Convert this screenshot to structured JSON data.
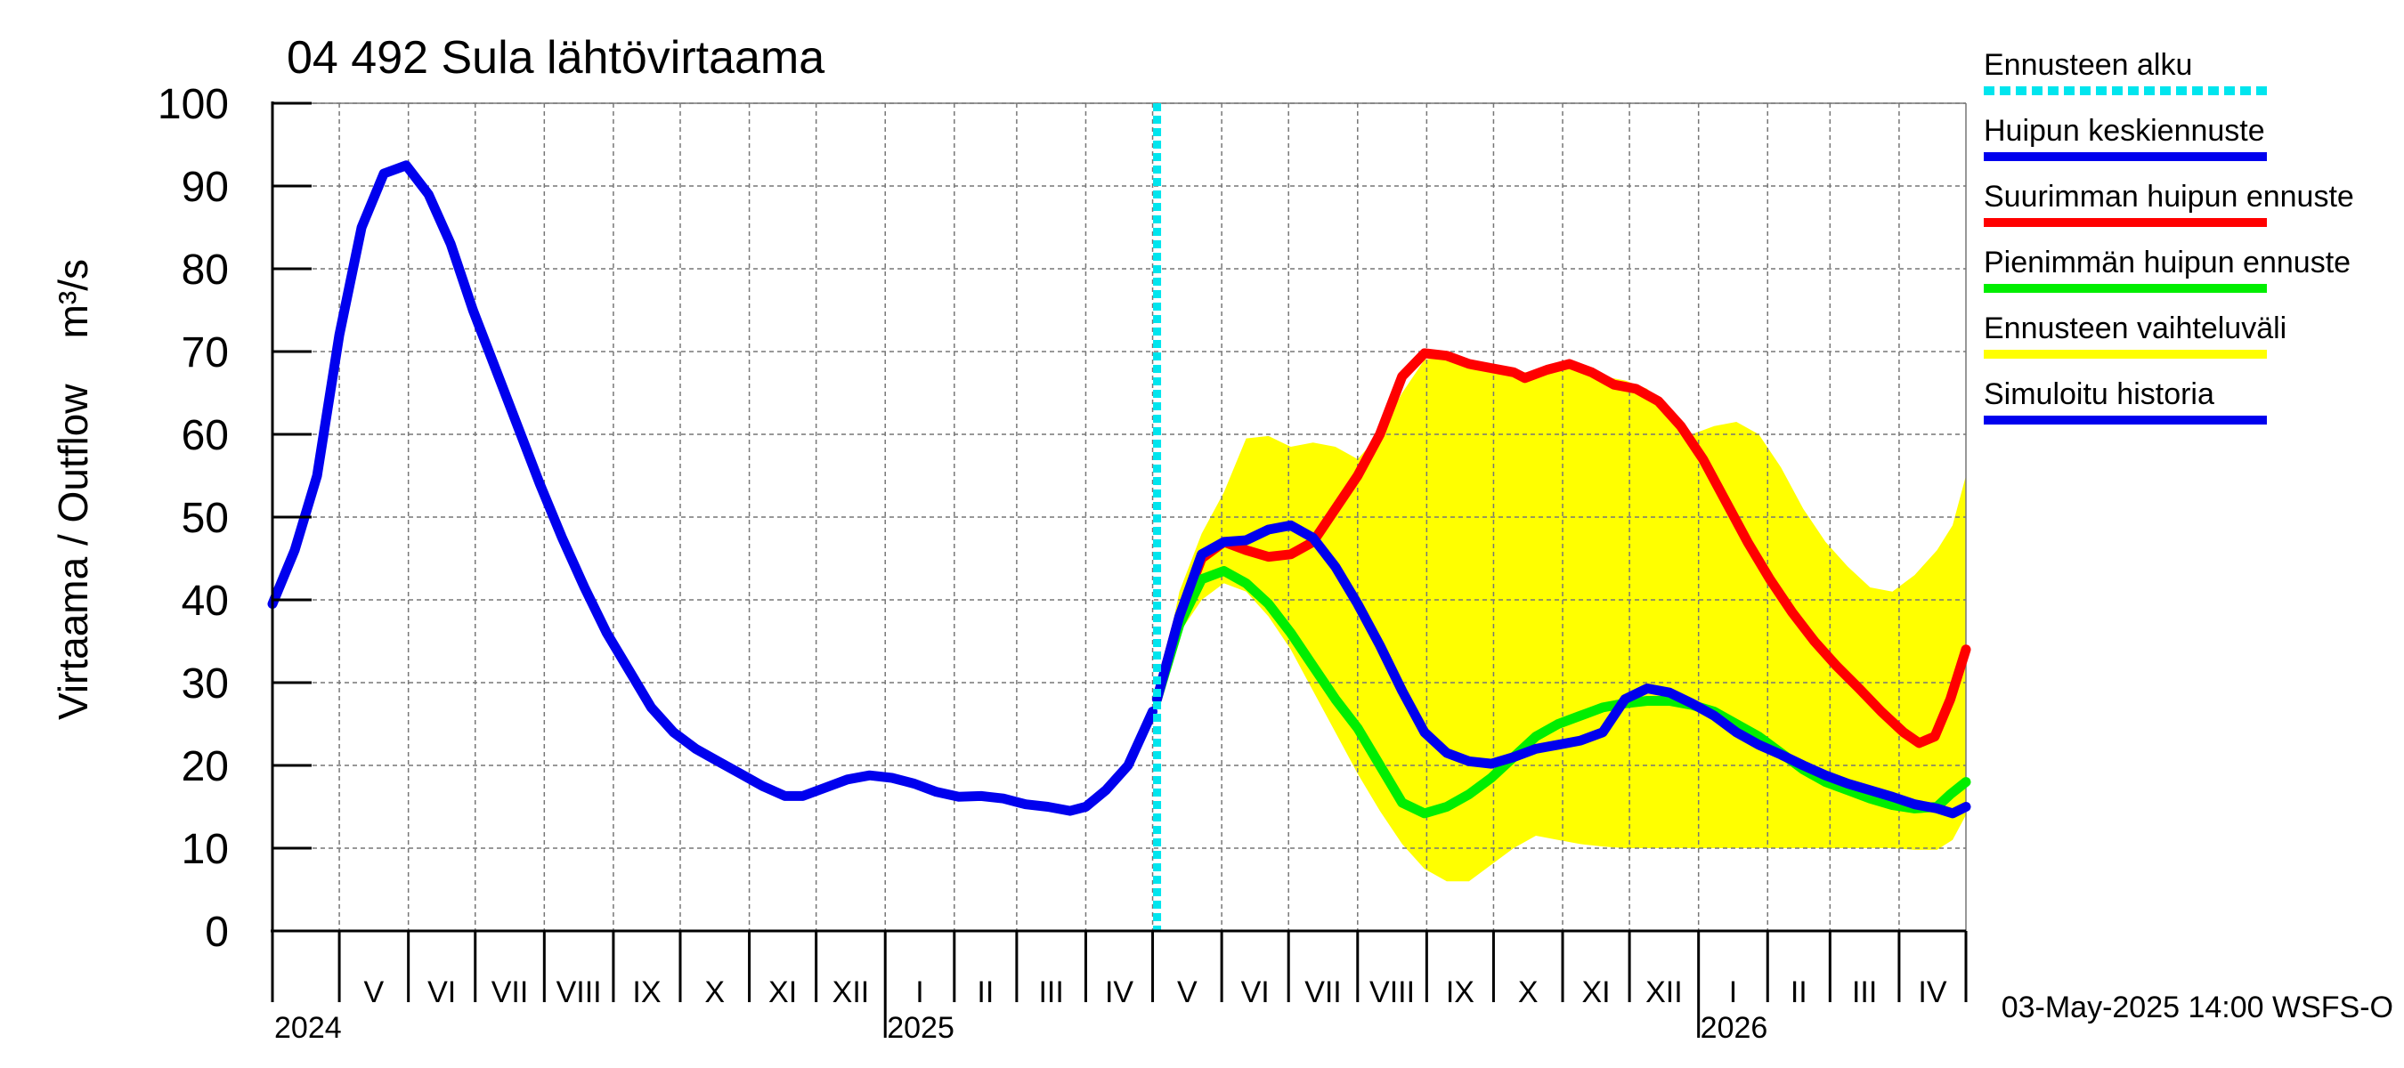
{
  "chart_data": {
    "type": "line",
    "title": "04 492 Sula lähtövirtaama",
    "ylabel": "Virtaama / Outflow    m³/s",
    "ylim": [
      0,
      100
    ],
    "yticks": [
      0,
      10,
      20,
      30,
      40,
      50,
      60,
      70,
      80,
      90,
      100
    ],
    "xlim": [
      "2024-04-01",
      "2026-05-01"
    ],
    "month_labels": [
      "V",
      "VI",
      "VII",
      "VIII",
      "IX",
      "X",
      "XI",
      "XII",
      "I",
      "II",
      "III",
      "IV",
      "V",
      "VI",
      "VII",
      "VIII",
      "IX",
      "X",
      "XI",
      "XII",
      "I",
      "II",
      "III",
      "IV"
    ],
    "month_label_dates": [
      "2024-05-01",
      "2024-06-01",
      "2024-07-01",
      "2024-08-01",
      "2024-09-01",
      "2024-10-01",
      "2024-11-01",
      "2024-12-01",
      "2025-01-01",
      "2025-02-01",
      "2025-03-01",
      "2025-04-01",
      "2025-05-01",
      "2025-06-01",
      "2025-07-01",
      "2025-08-01",
      "2025-09-01",
      "2025-10-01",
      "2025-11-01",
      "2025-12-01",
      "2026-01-01",
      "2026-02-01",
      "2026-03-01",
      "2026-04-01"
    ],
    "year_labels": [
      {
        "label": "2024",
        "date": "2024-04-01"
      },
      {
        "label": "2025",
        "date": "2025-01-01"
      },
      {
        "label": "2026",
        "date": "2026-01-01"
      }
    ],
    "forecast_start": "2025-05-03",
    "grid": true,
    "legend_position": "right",
    "footer": "03-May-2025 14:00 WSFS-O",
    "series": [
      {
        "name": "Simuloitu historia",
        "color": "#0000ee",
        "points": [
          [
            "2024-04-01",
            39.5
          ],
          [
            "2024-04-11",
            46
          ],
          [
            "2024-04-21",
            55
          ],
          [
            "2024-05-01",
            72
          ],
          [
            "2024-05-11",
            85
          ],
          [
            "2024-05-21",
            91.5
          ],
          [
            "2024-05-31",
            92.5
          ],
          [
            "2024-06-10",
            89
          ],
          [
            "2024-06-20",
            83
          ],
          [
            "2024-06-30",
            75
          ],
          [
            "2024-07-10",
            68
          ],
          [
            "2024-07-20",
            61
          ],
          [
            "2024-07-30",
            54
          ],
          [
            "2024-08-09",
            47.5
          ],
          [
            "2024-08-19",
            41.5
          ],
          [
            "2024-08-29",
            36
          ],
          [
            "2024-09-08",
            31.5
          ],
          [
            "2024-09-18",
            27
          ],
          [
            "2024-09-28",
            24
          ],
          [
            "2024-10-08",
            22
          ],
          [
            "2024-10-18",
            20.5
          ],
          [
            "2024-10-28",
            19
          ],
          [
            "2024-11-07",
            17.5
          ],
          [
            "2024-11-17",
            16.3
          ],
          [
            "2024-11-25",
            16.3
          ],
          [
            "2024-12-05",
            17.3
          ],
          [
            "2024-12-15",
            18.3
          ],
          [
            "2024-12-25",
            18.8
          ],
          [
            "2025-01-04",
            18.5
          ],
          [
            "2025-01-14",
            17.8
          ],
          [
            "2025-01-24",
            16.8
          ],
          [
            "2025-02-03",
            16.2
          ],
          [
            "2025-02-13",
            16.3
          ],
          [
            "2025-02-23",
            16
          ],
          [
            "2025-03-05",
            15.3
          ],
          [
            "2025-03-15",
            15
          ],
          [
            "2025-03-25",
            14.5
          ],
          [
            "2025-04-01",
            15
          ],
          [
            "2025-04-10",
            17
          ],
          [
            "2025-04-20",
            20
          ],
          [
            "2025-05-01",
            26.5
          ]
        ]
      },
      {
        "name": "Suurimman huipun ennuste",
        "color": "#ff0000",
        "points": [
          [
            "2025-05-03",
            28
          ],
          [
            "2025-05-13",
            38
          ],
          [
            "2025-05-23",
            45
          ],
          [
            "2025-06-02",
            47
          ],
          [
            "2025-06-12",
            46
          ],
          [
            "2025-06-22",
            45.2
          ],
          [
            "2025-07-02",
            45.5
          ],
          [
            "2025-07-12",
            47
          ],
          [
            "2025-07-22",
            51
          ],
          [
            "2025-08-01",
            55
          ],
          [
            "2025-08-11",
            60
          ],
          [
            "2025-08-21",
            67
          ],
          [
            "2025-08-31",
            69.8
          ],
          [
            "2025-09-10",
            69.5
          ],
          [
            "2025-09-20",
            68.5
          ],
          [
            "2025-09-30",
            68
          ],
          [
            "2025-10-10",
            67.5
          ],
          [
            "2025-10-15",
            66.8
          ],
          [
            "2025-10-25",
            67.8
          ],
          [
            "2025-11-04",
            68.5
          ],
          [
            "2025-11-14",
            67.5
          ],
          [
            "2025-11-24",
            66
          ],
          [
            "2025-12-04",
            65.5
          ],
          [
            "2025-12-14",
            64
          ],
          [
            "2025-12-24",
            61
          ],
          [
            "2026-01-03",
            57
          ],
          [
            "2026-01-13",
            52
          ],
          [
            "2026-01-23",
            47
          ],
          [
            "2026-02-02",
            42.5
          ],
          [
            "2026-02-12",
            38.5
          ],
          [
            "2026-02-22",
            35
          ],
          [
            "2026-03-04",
            32
          ],
          [
            "2026-03-14",
            29.3
          ],
          [
            "2026-03-24",
            26.5
          ],
          [
            "2026-04-03",
            24
          ],
          [
            "2026-04-10",
            22.7
          ],
          [
            "2026-04-17",
            23.5
          ],
          [
            "2026-04-24",
            28
          ],
          [
            "2026-05-01",
            34
          ]
        ]
      },
      {
        "name": "Pienimmän huipun ennuste",
        "color": "#00ee00",
        "points": [
          [
            "2025-05-03",
            28
          ],
          [
            "2025-05-13",
            37
          ],
          [
            "2025-05-23",
            42.5
          ],
          [
            "2025-06-02",
            43.5
          ],
          [
            "2025-06-12",
            42
          ],
          [
            "2025-06-22",
            39.5
          ],
          [
            "2025-07-02",
            36
          ],
          [
            "2025-07-12",
            32
          ],
          [
            "2025-07-22",
            28
          ],
          [
            "2025-08-01",
            24.5
          ],
          [
            "2025-08-11",
            20
          ],
          [
            "2025-08-21",
            15.5
          ],
          [
            "2025-08-31",
            14.2
          ],
          [
            "2025-09-10",
            15
          ],
          [
            "2025-09-20",
            16.5
          ],
          [
            "2025-09-30",
            18.5
          ],
          [
            "2025-10-10",
            21
          ],
          [
            "2025-10-20",
            23.5
          ],
          [
            "2025-10-30",
            25
          ],
          [
            "2025-11-09",
            26
          ],
          [
            "2025-11-19",
            27
          ],
          [
            "2025-11-29",
            27.5
          ],
          [
            "2025-12-09",
            27.8
          ],
          [
            "2025-12-19",
            27.8
          ],
          [
            "2025-12-29",
            27.3
          ],
          [
            "2026-01-08",
            26.5
          ],
          [
            "2026-01-18",
            25
          ],
          [
            "2026-01-28",
            23.5
          ],
          [
            "2026-02-07",
            21.5
          ],
          [
            "2026-02-17",
            19.5
          ],
          [
            "2026-02-27",
            18
          ],
          [
            "2026-03-09",
            17
          ],
          [
            "2026-03-19",
            16
          ],
          [
            "2026-03-29",
            15.2
          ],
          [
            "2026-04-08",
            14.8
          ],
          [
            "2026-04-18",
            15
          ],
          [
            "2026-04-24",
            16.5
          ],
          [
            "2026-05-01",
            18
          ]
        ]
      },
      {
        "name": "Huipun keskiennuste",
        "color": "#0000ee",
        "points": [
          [
            "2025-05-03",
            28
          ],
          [
            "2025-05-13",
            38
          ],
          [
            "2025-05-23",
            45.5
          ],
          [
            "2025-06-02",
            47
          ],
          [
            "2025-06-12",
            47.2
          ],
          [
            "2025-06-22",
            48.5
          ],
          [
            "2025-07-02",
            49
          ],
          [
            "2025-07-12",
            47.5
          ],
          [
            "2025-07-22",
            44
          ],
          [
            "2025-08-01",
            39.5
          ],
          [
            "2025-08-11",
            34.5
          ],
          [
            "2025-08-21",
            29
          ],
          [
            "2025-08-31",
            24
          ],
          [
            "2025-09-10",
            21.5
          ],
          [
            "2025-09-20",
            20.5
          ],
          [
            "2025-09-30",
            20.2
          ],
          [
            "2025-10-10",
            21
          ],
          [
            "2025-10-20",
            22
          ],
          [
            "2025-10-30",
            22.5
          ],
          [
            "2025-11-09",
            23
          ],
          [
            "2025-11-19",
            24
          ],
          [
            "2025-11-29",
            28
          ],
          [
            "2025-12-09",
            29.3
          ],
          [
            "2025-12-19",
            28.8
          ],
          [
            "2025-12-29",
            27.5
          ],
          [
            "2026-01-08",
            26
          ],
          [
            "2026-01-18",
            24
          ],
          [
            "2026-01-28",
            22.5
          ],
          [
            "2026-02-07",
            21.3
          ],
          [
            "2026-02-17",
            20
          ],
          [
            "2026-02-27",
            18.8
          ],
          [
            "2026-03-09",
            17.8
          ],
          [
            "2026-03-19",
            17
          ],
          [
            "2026-03-29",
            16.2
          ],
          [
            "2026-04-08",
            15.3
          ],
          [
            "2026-04-18",
            14.8
          ],
          [
            "2026-04-25",
            14.2
          ],
          [
            "2026-05-01",
            15
          ]
        ]
      }
    ],
    "band": {
      "name": "Ennusteen vaihteluväli",
      "color": "#ffff00",
      "upper": [
        [
          "2025-05-03",
          28
        ],
        [
          "2025-05-13",
          41
        ],
        [
          "2025-05-23",
          48
        ],
        [
          "2025-06-02",
          53
        ],
        [
          "2025-06-12",
          59.5
        ],
        [
          "2025-06-22",
          59.8
        ],
        [
          "2025-07-02",
          58.5
        ],
        [
          "2025-07-12",
          59
        ],
        [
          "2025-07-22",
          58.5
        ],
        [
          "2025-08-01",
          57
        ],
        [
          "2025-08-11",
          60
        ],
        [
          "2025-08-21",
          65
        ],
        [
          "2025-08-31",
          69
        ],
        [
          "2025-09-10",
          69.5
        ],
        [
          "2025-09-20",
          68.5
        ],
        [
          "2025-09-30",
          68
        ],
        [
          "2025-10-10",
          67.5
        ],
        [
          "2025-10-20",
          67.5
        ],
        [
          "2025-10-30",
          68
        ],
        [
          "2025-11-09",
          68
        ],
        [
          "2025-11-19",
          67
        ],
        [
          "2025-11-29",
          66.5
        ],
        [
          "2025-12-09",
          65.5
        ],
        [
          "2025-12-19",
          62
        ],
        [
          "2025-12-29",
          60
        ],
        [
          "2026-01-08",
          61
        ],
        [
          "2026-01-18",
          61.5
        ],
        [
          "2026-01-28",
          60
        ],
        [
          "2026-02-07",
          56
        ],
        [
          "2026-02-17",
          51
        ],
        [
          "2026-02-27",
          47
        ],
        [
          "2026-03-09",
          44
        ],
        [
          "2026-03-19",
          41.5
        ],
        [
          "2026-03-29",
          41
        ],
        [
          "2026-04-08",
          43
        ],
        [
          "2026-04-18",
          46
        ],
        [
          "2026-04-25",
          49
        ],
        [
          "2026-05-01",
          55
        ]
      ],
      "lower": [
        [
          "2025-05-03",
          28
        ],
        [
          "2025-05-13",
          36
        ],
        [
          "2025-05-23",
          40
        ],
        [
          "2025-06-02",
          42
        ],
        [
          "2025-06-12",
          41
        ],
        [
          "2025-06-22",
          38
        ],
        [
          "2025-07-02",
          34
        ],
        [
          "2025-07-12",
          29
        ],
        [
          "2025-07-22",
          24
        ],
        [
          "2025-08-01",
          19
        ],
        [
          "2025-08-11",
          14.5
        ],
        [
          "2025-08-21",
          10.5
        ],
        [
          "2025-08-31",
          7.5
        ],
        [
          "2025-09-10",
          6
        ],
        [
          "2025-09-20",
          6
        ],
        [
          "2025-09-30",
          8
        ],
        [
          "2025-10-10",
          10
        ],
        [
          "2025-10-20",
          11.5
        ],
        [
          "2025-10-30",
          11
        ],
        [
          "2025-11-09",
          10.5
        ],
        [
          "2025-11-19",
          10.2
        ],
        [
          "2025-11-29",
          10
        ],
        [
          "2025-12-09",
          10
        ],
        [
          "2025-12-19",
          10
        ],
        [
          "2025-12-29",
          10
        ],
        [
          "2026-01-08",
          10
        ],
        [
          "2026-01-18",
          10
        ],
        [
          "2026-01-28",
          10
        ],
        [
          "2026-02-07",
          10
        ],
        [
          "2026-02-17",
          10
        ],
        [
          "2026-02-27",
          10
        ],
        [
          "2026-03-09",
          10
        ],
        [
          "2026-03-19",
          10
        ],
        [
          "2026-03-29",
          10
        ],
        [
          "2026-04-08",
          9.8
        ],
        [
          "2026-04-18",
          9.8
        ],
        [
          "2026-04-25",
          11
        ],
        [
          "2026-05-01",
          14
        ]
      ]
    },
    "legend": [
      {
        "label": "Ennusteen alku",
        "color": "#00e5ee",
        "style": "dotted"
      },
      {
        "label": "Huipun keskiennuste",
        "color": "#0000ee",
        "style": "solid"
      },
      {
        "label": "Suurimman huipun ennuste",
        "color": "#ff0000",
        "style": "solid"
      },
      {
        "label": "Pienimmän huipun ennuste",
        "color": "#00ee00",
        "style": "solid"
      },
      {
        "label": "Ennusteen vaihteluväli",
        "color": "#ffff00",
        "style": "solid"
      },
      {
        "label": "Simuloitu historia",
        "color": "#0000ee",
        "style": "solid"
      }
    ]
  }
}
